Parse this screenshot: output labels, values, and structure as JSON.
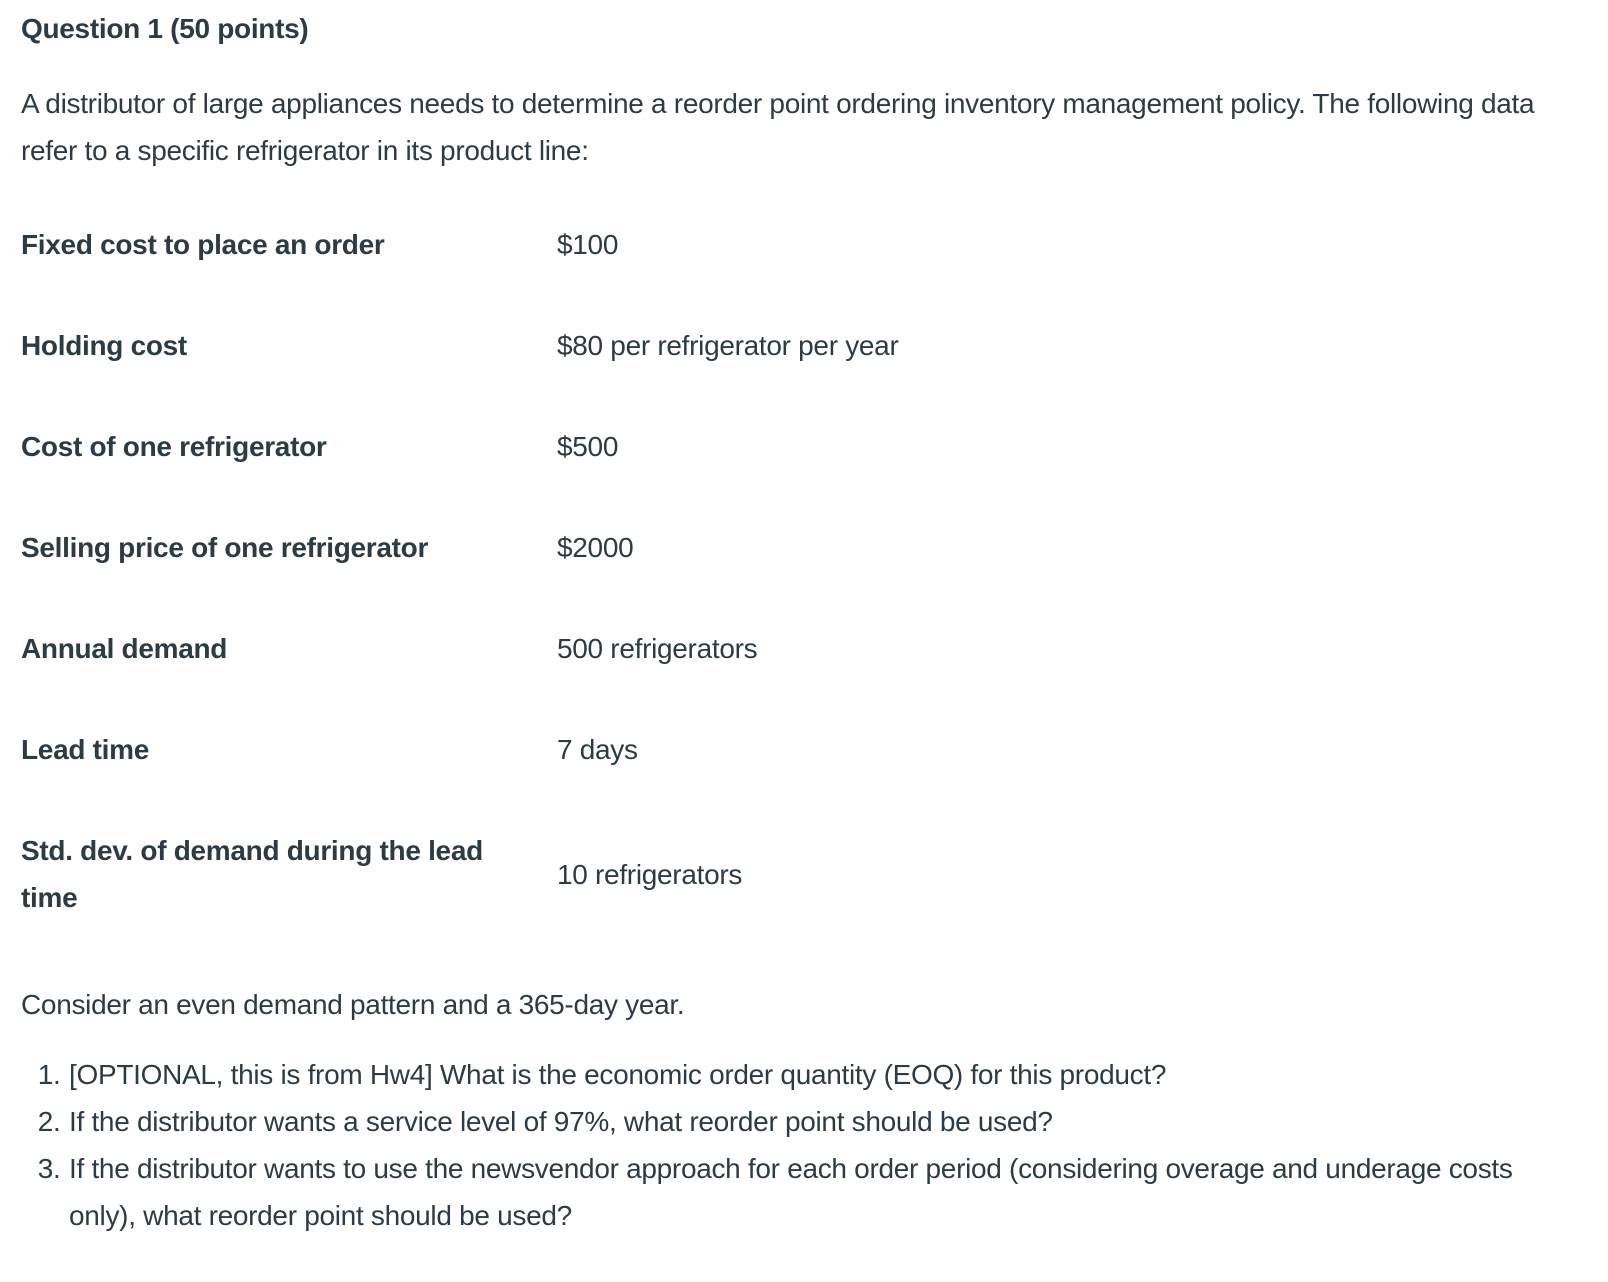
{
  "colors": {
    "text": "#2d3b45",
    "background": "#ffffff"
  },
  "question": {
    "title": "Question 1 (50 points)",
    "intro": "A distributor of large appliances needs to determine a reorder point ordering inventory management policy. The following data refer to a specific refrigerator in its product line:",
    "table": {
      "rows": [
        {
          "label": "Fixed cost to place an order",
          "value": "$100"
        },
        {
          "label": "Holding cost",
          "value": "$80 per refrigerator per year"
        },
        {
          "label": "Cost of one refrigerator",
          "value": "$500"
        },
        {
          "label": "Selling price of one refrigerator",
          "value": "$2000"
        },
        {
          "label": "Annual demand",
          "value": "500 refrigerators"
        },
        {
          "label": "Lead time",
          "value": "7 days"
        },
        {
          "label": "Std. dev. of demand during the lead time",
          "value": "10 refrigerators"
        }
      ]
    },
    "note": "Consider an even demand pattern and a 365-day year.",
    "items": [
      "[OPTIONAL, this is from Hw4] What is the economic order quantity (EOQ) for this product?",
      "If the distributor wants a service level of 97%, what reorder point should be used?",
      "If the distributor wants to use the newsvendor approach for each order period (considering overage and underage costs only), what reorder point should be used?"
    ]
  }
}
